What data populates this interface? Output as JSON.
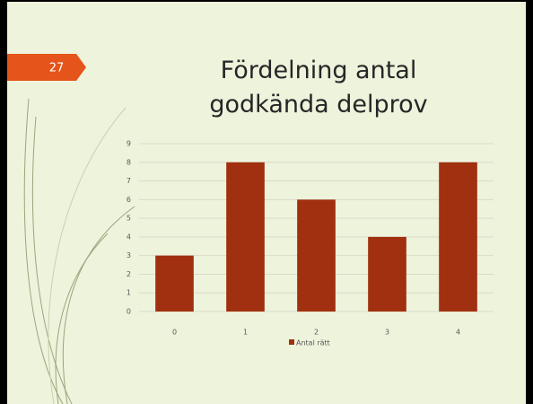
{
  "slide_number": "27",
  "chart_data": {
    "type": "bar",
    "title": "Fördelning antal godkända delprov",
    "categories": [
      "0",
      "1",
      "2",
      "3",
      "4"
    ],
    "series": [
      {
        "name": "Antal rätt",
        "color": "#a0300f",
        "values": [
          3,
          8,
          6,
          4,
          8
        ]
      }
    ],
    "ylim": [
      0,
      9
    ],
    "yticks": [
      0,
      1,
      2,
      3,
      4,
      5,
      6,
      7,
      8,
      9
    ],
    "grid": true,
    "legend": "bottom"
  }
}
